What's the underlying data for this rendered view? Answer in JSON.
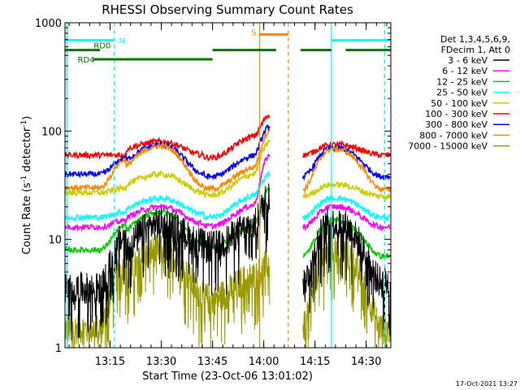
{
  "chart_data": {
    "type": "line",
    "title": "RHESSI Observing Summary Count Rates",
    "xlabel": "Start Time (23-Oct-06 13:01:02)",
    "ylabel_main": "Count Rate (s",
    "ylabel_sup1": "-1",
    "ylabel_mid": " detector",
    "ylabel_sup2": "-1",
    "ylabel_end": ")",
    "y_scale": "log",
    "ylim": [
      1,
      1000
    ],
    "xlim_minutes": [
      13.03,
      14.62
    ],
    "x_ticks": [
      {
        "v": 13.25,
        "label": "13:15"
      },
      {
        "v": 13.5,
        "label": "13:30"
      },
      {
        "v": 13.75,
        "label": "13:45"
      },
      {
        "v": 14.0,
        "label": "14:00"
      },
      {
        "v": 14.25,
        "label": "14:15"
      },
      {
        "v": 14.5,
        "label": "14:30"
      }
    ],
    "y_ticks": [
      {
        "v": 1,
        "label": "1"
      },
      {
        "v": 10,
        "label": "10"
      },
      {
        "v": 100,
        "label": "100"
      },
      {
        "v": 1000,
        "label": "1000"
      }
    ],
    "legend_header": [
      "Det 1,3,4,5,6,9,",
      "FDecim 1, Att 0"
    ],
    "legend_position": "right",
    "series": [
      {
        "name": "3 - 6 keV",
        "color": "#000000",
        "pre": 3.5,
        "peak1": 14,
        "mid": 9,
        "rise": 25,
        "post": 4,
        "peak2": 14
      },
      {
        "name": "6 - 12 keV",
        "color": "#ff00ff",
        "pre": 13,
        "peak1": 20,
        "mid": 14,
        "rise": 60,
        "post": 13,
        "peak2": 20
      },
      {
        "name": "12 - 25 keV",
        "color": "#00cc00",
        "pre": 8,
        "peak1": 18,
        "mid": 9,
        "rise": 30,
        "post": 7,
        "peak2": 15
      },
      {
        "name": "25 - 50 keV",
        "color": "#00ffff",
        "pre": 16,
        "peak1": 24,
        "mid": 17,
        "rise": 40,
        "post": 16,
        "peak2": 24
      },
      {
        "name": "50 - 100 keV",
        "color": "#cccc00",
        "pre": 27,
        "peak1": 40,
        "mid": 27,
        "rise": 80,
        "post": 25,
        "peak2": 32
      },
      {
        "name": "100 - 300 keV",
        "color": "#ff0000",
        "pre": 60,
        "peak1": 80,
        "mid": 60,
        "rise": 140,
        "post": 60,
        "peak2": 75
      },
      {
        "name": "300 - 800 keV",
        "color": "#0000ff",
        "pre": 40,
        "peak1": 75,
        "mid": 40,
        "rise": 110,
        "post": 38,
        "peak2": 70
      },
      {
        "name": "800 - 7000 keV",
        "color": "#ff8800",
        "pre": 30,
        "peak1": 73,
        "mid": 31,
        "rise": 100,
        "post": 29,
        "peak2": 68
      },
      {
        "name": "7000 - 15000 keV",
        "color": "#999900",
        "pre": 1.5,
        "peak1": 8,
        "mid": 3,
        "rise": 6,
        "post": 1.5,
        "peak2": 8
      }
    ],
    "flag_bars": [
      {
        "label": "N",
        "color": "#00ffff",
        "y": 690,
        "segments": [
          [
            13.03,
            13.27
          ],
          [
            14.33,
            14.62
          ]
        ]
      },
      {
        "label": "RD0",
        "color": "#007700",
        "y": 560,
        "segments": [
          [
            13.03,
            13.2
          ],
          [
            13.75,
            14.06
          ],
          [
            14.18,
            14.33
          ],
          [
            14.4,
            14.62
          ]
        ]
      },
      {
        "label": "RD4",
        "color": "#007700",
        "y": 460,
        "segments": [
          [
            13.17,
            13.75
          ]
        ]
      },
      {
        "label": "S",
        "color": "#ff8800",
        "y": 780,
        "segments": [
          [
            13.98,
            14.12
          ]
        ]
      }
    ],
    "vlines": [
      {
        "x": 13.04,
        "color": "#00ffff",
        "dash": false
      },
      {
        "x": 13.27,
        "color": "#00ffff",
        "dash": true
      },
      {
        "x": 13.98,
        "color": "#ff8800",
        "dash": false
      },
      {
        "x": 14.12,
        "color": "#ff8800",
        "dash": true
      },
      {
        "x": 14.33,
        "color": "#00ffff",
        "dash": false
      },
      {
        "x": 14.59,
        "color": "#00ffff",
        "dash": true
      }
    ],
    "gap": [
      14.03,
      14.19
    ],
    "timestamp": "17-Oct-2021 13:27"
  }
}
